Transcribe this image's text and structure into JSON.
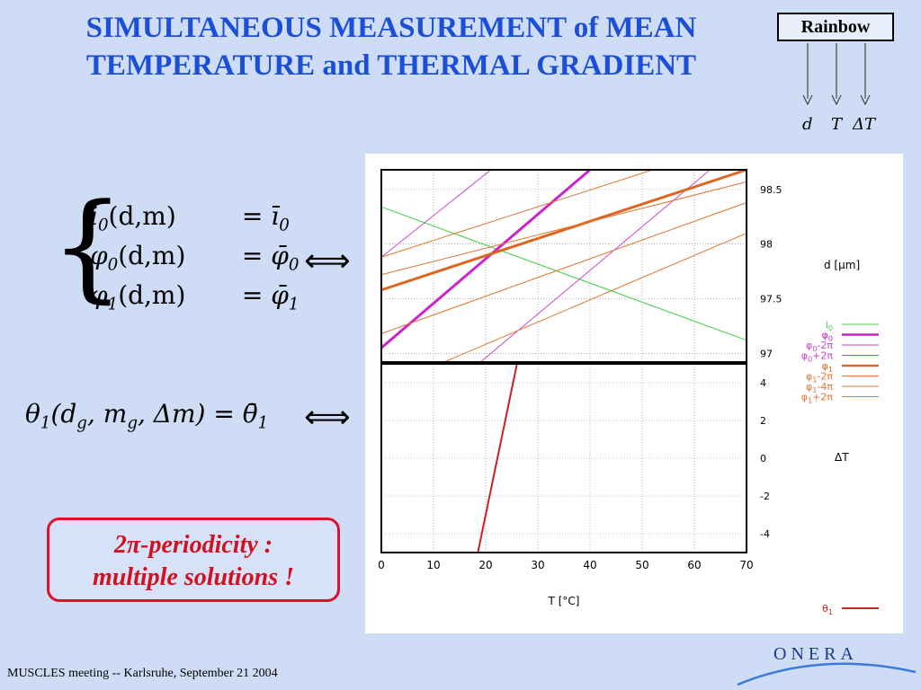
{
  "slide": {
    "title_line1": "SIMULTANEOUS MEASUREMENT of MEAN",
    "title_line2": "TEMPERATURE and THERMAL GRADIENT",
    "rainbow_label": "Rainbow",
    "outputs": [
      "d",
      "T",
      "ΔT"
    ],
    "note_line1": "2π-periodicity :",
    "note_line2": "multiple solutions !",
    "footer": "MUSCLES meeting -- Karlsruhe, September 21 2004",
    "logo_text": "ONERA"
  },
  "equations": {
    "sys_rows": [
      {
        "lhs_a": "i",
        "lhs_sub": "0",
        "lhs_b": "(d,m)",
        "rhs_a": "= ī",
        "rhs_sub": "0"
      },
      {
        "lhs_a": "φ",
        "lhs_sub": "0",
        "lhs_b": "(d,m)",
        "rhs_a": "= φ̄",
        "rhs_sub": "0"
      },
      {
        "lhs_a": "φ",
        "lhs_sub": "1",
        "lhs_b": "(d,m)",
        "rhs_a": "= φ̄",
        "rhs_sub": "1"
      }
    ],
    "eq2": {
      "a": "θ",
      "a_sub": "1",
      "b": "(d",
      "b_sub": "g",
      "c": ", m",
      "c_sub": "g",
      "d": ", Δm) = θ̄",
      "d_sub": "1"
    },
    "equiv_arrow": "⟺"
  },
  "chart_data": {
    "type": "line",
    "xlabel": "T [°C]",
    "x_ticks": [
      "0",
      "10",
      "20",
      "30",
      "40",
      "50",
      "60",
      "70"
    ],
    "xlim": [
      0,
      70
    ],
    "top_panel": {
      "ylabel": "d [μm]",
      "y_ticks": [
        "98.5",
        "98",
        "97.5",
        "97"
      ],
      "ylim": [
        96.92,
        98.68
      ],
      "series": [
        {
          "name": "i0",
          "label": "i",
          "sub": "0",
          "sup": "",
          "color": "#44cc44",
          "width": 1,
          "points": [
            [
              0,
              98.34
            ],
            [
              70,
              97.12
            ]
          ]
        },
        {
          "name": "φ0",
          "label": "φ",
          "sub": "0",
          "sup": "",
          "color": "#cc22cc",
          "width": 3,
          "points": [
            [
              0,
              97.05
            ],
            [
              40,
              98.68
            ]
          ]
        },
        {
          "name": "φ0-2π",
          "label": "φ",
          "sub": "0",
          "sup": "-2π",
          "color": "#cc44cc",
          "width": 1,
          "points": [
            [
              19,
              96.92
            ],
            [
              63,
              98.68
            ]
          ]
        },
        {
          "name": "φ0+2π",
          "label": "φ",
          "sub": "0",
          "sup": "+2π",
          "color": "#cc44cc",
          "width": 1,
          "points": [
            [
              0,
              97.88
            ],
            [
              21,
              98.68
            ]
          ]
        },
        {
          "name": "φ1",
          "label": "φ",
          "sub": "1",
          "sup": "",
          "color": "#dd6622",
          "width": 3,
          "points": [
            [
              0,
              97.58
            ],
            [
              70,
              98.68
            ]
          ]
        },
        {
          "name": "φ1-2π",
          "label": "φ",
          "sub": "1",
          "sup": "-2π",
          "color": "#dd7733",
          "width": 1,
          "points": [
            [
              0,
              97.18
            ],
            [
              70,
              98.38
            ]
          ]
        },
        {
          "name": "φ1-4π",
          "label": "φ",
          "sub": "1",
          "sup": "-4π",
          "color": "#dd7733",
          "width": 1,
          "points": [
            [
              12,
              96.92
            ],
            [
              70,
              98.1
            ]
          ]
        },
        {
          "name": "φ1+2π",
          "label": "φ",
          "sub": "1",
          "sup": "+2π",
          "color": "#dd7733",
          "width": 1,
          "points": [
            [
              0,
              97.88
            ],
            [
              52,
              98.68
            ]
          ]
        },
        {
          "name": "φ1+2π (b)",
          "label": "",
          "sub": "",
          "sup": "",
          "color": "#dd7733",
          "width": 1,
          "points": [
            [
              0,
              97.72
            ],
            [
              70,
              98.57
            ]
          ]
        }
      ]
    },
    "bottom_panel": {
      "ylabel": "ΔT",
      "y_ticks": [
        "4",
        "2",
        "0",
        "-2",
        "-4"
      ],
      "ylim": [
        -5,
        5
      ],
      "series": [
        {
          "name": "θ1",
          "label": "θ",
          "sub": "1",
          "sup": "",
          "color": "#cc2222",
          "width": 2,
          "points": [
            [
              18.5,
              -5
            ],
            [
              26,
              5
            ]
          ]
        }
      ]
    }
  }
}
